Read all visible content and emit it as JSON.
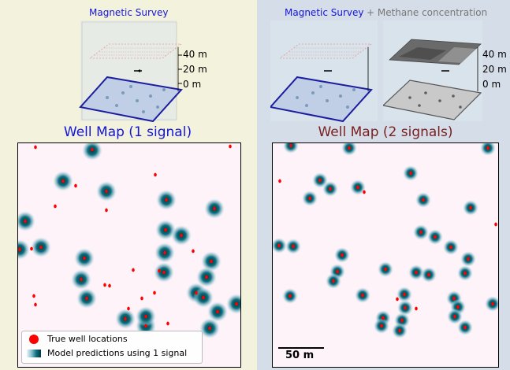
{
  "left_panel": {
    "header": "Magnetic Survey",
    "title": "Well Map (1 signal)",
    "background": "#f3f2dc"
  },
  "right_panel": {
    "header": "Magnetic Survey",
    "header_extra": "+ Methane concentration",
    "title": "Well Map (2 signals)",
    "background": "#d4dde8"
  },
  "axes": {
    "left": [
      "40 m",
      "20 m",
      "0 m"
    ],
    "right": [
      "40 m",
      "20 m",
      "0 m"
    ]
  },
  "legend": {
    "true_wells": "True well locations",
    "predictions": "Model predictions using 1 signal"
  },
  "scale_bar": "50 m",
  "colors": {
    "true_well": "#ff0000",
    "prediction": "#0e6f7f",
    "map_bg": "#fdf3f9",
    "title_left": "#1515d8",
    "title_right": "#7a1f1f"
  }
}
